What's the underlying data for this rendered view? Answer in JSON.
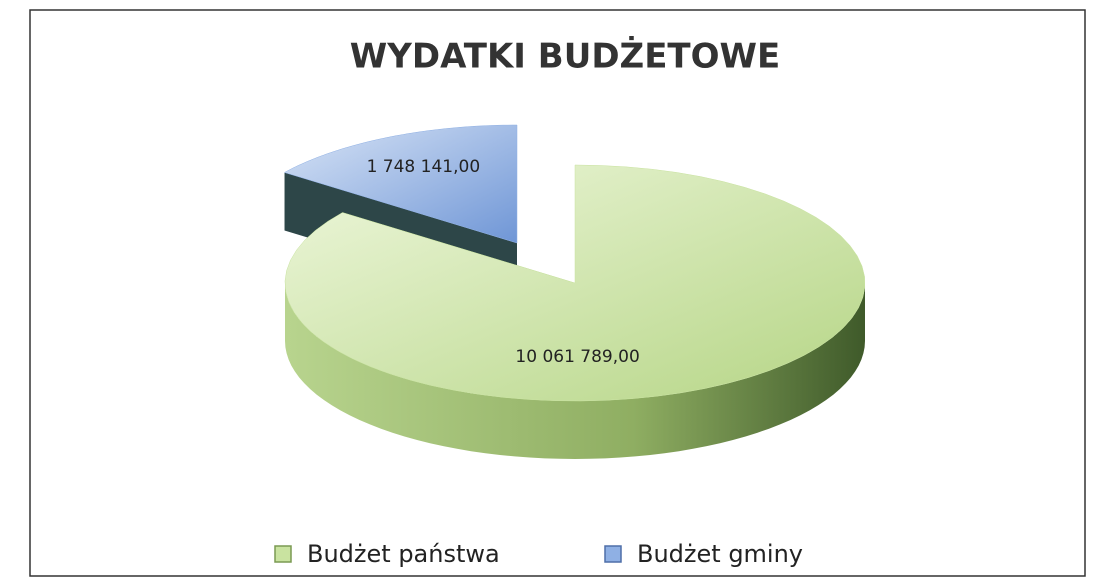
{
  "chart_data": {
    "type": "pie",
    "title": "WYDATKI BUDŻETOWE",
    "categories": [
      "Budżet państwa",
      "Budżet gminy"
    ],
    "values": [
      10061789,
      1748141
    ],
    "value_labels": [
      "10 061 789,00",
      "1 748 141,00"
    ],
    "colors": [
      "#c9e3a0",
      "#8fb0e4"
    ],
    "legend": "bottom"
  }
}
